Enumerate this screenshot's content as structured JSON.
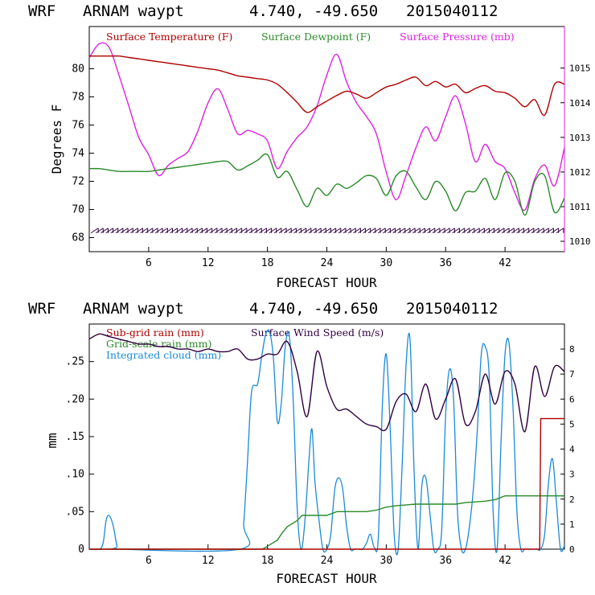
{
  "colors": {
    "temperature": "#b00000",
    "dewpoint": "#2a8a2a",
    "pressure": "#e020e0",
    "subgrid_rain": "#b00000",
    "gridscale_rain": "#2a8a2a",
    "cloud": "#1a8ad8",
    "wind": "#300040",
    "barb": "#300040"
  },
  "chart_data": [
    {
      "type": "line",
      "header": {
        "model": "WRF",
        "site": "ARNAM waypt",
        "coords": "4.740, -49.650",
        "init": "2015040112"
      },
      "xlabel": "FORECAST HOUR",
      "ylabel": "Degrees F",
      "xlim": [
        0,
        48
      ],
      "ylim": [
        67,
        83
      ],
      "y2lim": [
        1009.7,
        1016.2
      ],
      "x_ticks": [
        6,
        12,
        18,
        24,
        30,
        36,
        42
      ],
      "x_tick_labels": [
        "6",
        "12",
        "18",
        "24",
        "30",
        "36",
        "42"
      ],
      "y_ticks": [
        68,
        70,
        72,
        74,
        76,
        78,
        80
      ],
      "y_tick_labels": [
        "68",
        "70",
        "72",
        "74",
        "76",
        "78",
        "80"
      ],
      "y2_ticks": [
        1010,
        1011,
        1012,
        1013,
        1014,
        1015
      ],
      "y2_tick_labels": [
        "1010",
        "1011",
        "1012",
        "1013",
        "1014",
        "1015"
      ],
      "legend": [
        "Surface Temperature (F)",
        "Surface Dewpoint (F)",
        "Surface Pressure (mb)"
      ],
      "series": [
        {
          "name": "Surface Temperature (F)",
          "axis": "left",
          "x": [
            0,
            1,
            2,
            3,
            4,
            5,
            6,
            7,
            8,
            9,
            10,
            11,
            12,
            13,
            14,
            15,
            16,
            17,
            18,
            19,
            20,
            21,
            22,
            23,
            24,
            25,
            26,
            27,
            28,
            29,
            30,
            31,
            32,
            33,
            34,
            35,
            36,
            37,
            38,
            39,
            40,
            41,
            42,
            43,
            44,
            45,
            46,
            47,
            48
          ],
          "values": [
            80.9,
            80.9,
            80.9,
            80.9,
            80.8,
            80.7,
            80.6,
            80.5,
            80.4,
            80.3,
            80.2,
            80.1,
            80.0,
            79.9,
            79.7,
            79.5,
            79.4,
            79.3,
            79.2,
            78.9,
            78.3,
            77.6,
            76.9,
            77.3,
            77.7,
            78.1,
            78.4,
            78.2,
            77.9,
            78.3,
            78.7,
            78.9,
            79.2,
            79.4,
            78.8,
            79.1,
            78.7,
            78.9,
            78.3,
            78.6,
            78.8,
            78.4,
            78.3,
            77.9,
            77.3,
            77.8,
            76.7,
            78.9,
            78.9
          ]
        },
        {
          "name": "Surface Dewpoint (F)",
          "axis": "left",
          "x": [
            0,
            1,
            2,
            3,
            4,
            5,
            6,
            7,
            8,
            9,
            10,
            11,
            12,
            13,
            14,
            15,
            16,
            17,
            18,
            19,
            20,
            21,
            22,
            23,
            24,
            25,
            26,
            27,
            28,
            29,
            30,
            31,
            32,
            33,
            34,
            35,
            36,
            37,
            38,
            39,
            40,
            41,
            42,
            43,
            44,
            45,
            46,
            47,
            48
          ],
          "values": [
            72.9,
            72.9,
            72.8,
            72.7,
            72.7,
            72.7,
            72.7,
            72.8,
            72.9,
            73.0,
            73.1,
            73.2,
            73.3,
            73.4,
            73.4,
            72.8,
            73.1,
            73.5,
            73.9,
            72.3,
            72.7,
            71.4,
            70.2,
            71.5,
            71.0,
            71.8,
            71.5,
            71.9,
            72.4,
            72.2,
            71.0,
            72.4,
            72.7,
            71.6,
            70.7,
            72.0,
            71.3,
            69.9,
            71.2,
            71.3,
            72.2,
            70.7,
            72.6,
            72.0,
            69.6,
            72.0,
            72.4,
            69.8,
            70.8
          ]
        },
        {
          "name": "Surface Pressure (mb)",
          "axis": "right",
          "x": [
            0,
            1,
            2,
            3,
            4,
            5,
            6,
            7,
            8,
            9,
            10,
            11,
            12,
            13,
            14,
            15,
            16,
            17,
            18,
            19,
            20,
            21,
            22,
            23,
            24,
            25,
            26,
            27,
            28,
            29,
            30,
            31,
            32,
            33,
            34,
            35,
            36,
            37,
            38,
            39,
            40,
            41,
            42,
            43,
            44,
            45,
            46,
            47,
            48
          ],
          "values": [
            1015.3,
            1015.7,
            1015.6,
            1014.8,
            1013.9,
            1013.0,
            1012.5,
            1011.9,
            1012.2,
            1012.4,
            1012.6,
            1013.2,
            1014.0,
            1014.4,
            1013.8,
            1013.1,
            1013.2,
            1013.1,
            1012.9,
            1012.1,
            1012.6,
            1013.0,
            1013.3,
            1013.9,
            1014.8,
            1015.4,
            1014.6,
            1014.0,
            1013.6,
            1013.1,
            1012.0,
            1011.2,
            1011.9,
            1012.7,
            1013.3,
            1012.9,
            1013.6,
            1014.2,
            1013.4,
            1012.3,
            1012.8,
            1012.3,
            1012.1,
            1011.4,
            1010.9,
            1011.8,
            1012.2,
            1011.6,
            1012.7
          ]
        }
      ],
      "wind_barb_value": 68.5
    },
    {
      "type": "line",
      "header": {
        "model": "WRF",
        "site": "ARNAM waypt",
        "coords": "4.740, -49.650",
        "init": "2015040112"
      },
      "xlabel": "FORECAST HOUR",
      "ylabel": "mm",
      "xlim": [
        0,
        48
      ],
      "ylim": [
        0,
        0.3
      ],
      "y2lim": [
        0,
        9
      ],
      "x_ticks": [
        6,
        12,
        18,
        24,
        30,
        36,
        42
      ],
      "x_tick_labels": [
        "6",
        "12",
        "18",
        "24",
        "30",
        "36",
        "42"
      ],
      "y_ticks": [
        0,
        0.05,
        0.1,
        0.15,
        0.2,
        0.25
      ],
      "y_tick_labels": [
        "0",
        ".05",
        ".10",
        ".15",
        ".20",
        ".25"
      ],
      "y2_ticks": [
        0,
        1,
        2,
        3,
        4,
        5,
        6,
        7,
        8
      ],
      "y2_tick_labels": [
        "0",
        "1",
        "2",
        "3",
        "4",
        "5",
        "6",
        "7",
        "8"
      ],
      "legend": [
        "Sub-grid rain (mm)",
        "Surface Wind Speed (m/s)",
        "Grid-scale rain (mm)",
        "Integrated cloud (mm)"
      ],
      "series": [
        {
          "name": "Sub-grid rain (mm)",
          "axis": "left",
          "x": [
            0,
            45.5,
            45.6,
            46,
            48
          ],
          "values": [
            0,
            0,
            0.174,
            0.174,
            0.174
          ]
        },
        {
          "name": "Grid-scale rain (mm)",
          "axis": "left",
          "x": [
            0,
            17.5,
            18,
            19,
            19.5,
            20,
            21,
            21.5,
            24,
            25,
            28,
            29,
            30,
            31,
            33,
            37,
            38,
            40,
            41,
            42,
            48
          ],
          "values": [
            0,
            0,
            0.004,
            0.012,
            0.022,
            0.03,
            0.038,
            0.045,
            0.045,
            0.05,
            0.05,
            0.052,
            0.056,
            0.058,
            0.06,
            0.06,
            0.062,
            0.064,
            0.066,
            0.071,
            0.071
          ]
        },
        {
          "name": "Integrated cloud (mm)",
          "axis": "left",
          "x": [
            0,
            1,
            1.4,
            1.7,
            2.0,
            2.4,
            2.8,
            3,
            15.2,
            15.6,
            16,
            16.4,
            17,
            17.4,
            17.8,
            18.2,
            18.6,
            19,
            19.4,
            19.8,
            20.2,
            20.6,
            21,
            21.4,
            21.8,
            22.2,
            22.5,
            22.8,
            23.2,
            23.6,
            24,
            24.4,
            24.8,
            25.2,
            25.6,
            26,
            26.4,
            26.8,
            27.2,
            27.6,
            28,
            28.4,
            28.8,
            29.2,
            29.6,
            30,
            30.4,
            30.8,
            31.2,
            31.6,
            32,
            32.4,
            32.8,
            33.2,
            33.6,
            34,
            34.4,
            34.8,
            35.2,
            35.6,
            36,
            36.4,
            36.8,
            37.2,
            37.6,
            38,
            38.4,
            38.8,
            39.2,
            39.6,
            40,
            40.4,
            40.8,
            41.2,
            41.6,
            42,
            42.4,
            42.8,
            43.2,
            43.6,
            44,
            44.4,
            44.8,
            45.2,
            45.6,
            46,
            46.4,
            46.8,
            47.2,
            47.6,
            48
          ],
          "values": [
            0,
            0,
            0.008,
            0.038,
            0.045,
            0.032,
            0.004,
            0,
            0,
            0.035,
            0.12,
            0.21,
            0.22,
            0.255,
            0.285,
            0.29,
            0.255,
            0.17,
            0.195,
            0.27,
            0.285,
            0.2,
            0.055,
            0.0,
            0.04,
            0.12,
            0.16,
            0.09,
            0.04,
            0.0,
            0.0,
            0.02,
            0.08,
            0.095,
            0.08,
            0.03,
            0.0,
            0.0,
            0.0,
            0.0,
            0.008,
            0.02,
            0.002,
            0.015,
            0.19,
            0.26,
            0.16,
            0.02,
            0.0,
            0.11,
            0.245,
            0.28,
            0.11,
            0.0,
            0.085,
            0.095,
            0.05,
            0.0,
            0.0,
            0.025,
            0.18,
            0.24,
            0.2,
            0.05,
            0.0,
            0.0,
            0.03,
            0.08,
            0.16,
            0.26,
            0.27,
            0.23,
            0.05,
            0.0,
            0.145,
            0.26,
            0.275,
            0.19,
            0.05,
            0.0,
            0.0,
            0.0,
            0.0,
            0.0,
            0.0,
            0.02,
            0.09,
            0.12,
            0.06,
            0.0,
            0.005
          ]
        },
        {
          "name": "Surface Wind Speed (m/s)",
          "axis": "right",
          "x": [
            0,
            1,
            2,
            3,
            4,
            5,
            6,
            7,
            8,
            9,
            10,
            11,
            12,
            13,
            14,
            15,
            16,
            17,
            18,
            19,
            20,
            21,
            22,
            23,
            24,
            25,
            26,
            27,
            28,
            29,
            30,
            31,
            32,
            33,
            34,
            35,
            36,
            37,
            38,
            39,
            40,
            41,
            42,
            43,
            44,
            45,
            46,
            47,
            48
          ],
          "values": [
            8.4,
            8.6,
            8.5,
            8.4,
            8.3,
            8.2,
            8.2,
            8.1,
            8.1,
            8.0,
            8.0,
            7.9,
            8.0,
            7.9,
            7.9,
            8.0,
            7.6,
            7.6,
            7.8,
            7.8,
            8.3,
            7.1,
            5.3,
            7.9,
            6.5,
            5.6,
            5.6,
            5.3,
            5.0,
            4.9,
            4.8,
            5.9,
            6.2,
            5.5,
            6.6,
            5.2,
            6.0,
            6.8,
            5.0,
            5.5,
            7.0,
            5.8,
            7.1,
            6.6,
            4.7,
            7.3,
            6.1,
            7.3,
            7.1
          ]
        }
      ]
    }
  ]
}
